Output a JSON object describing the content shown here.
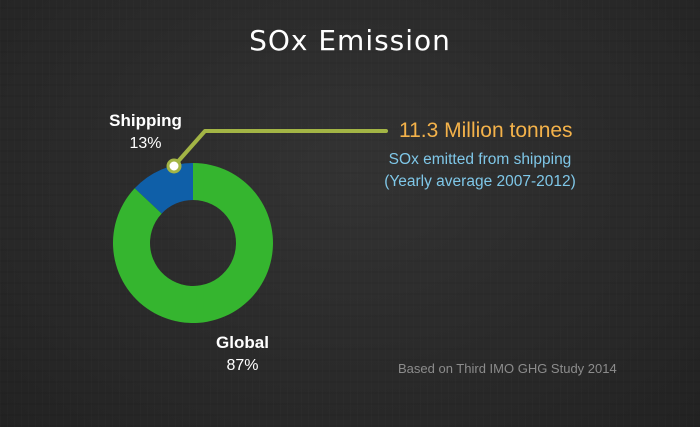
{
  "chart_data": {
    "type": "pie",
    "title": "SOx Emission",
    "categories": [
      "Shipping",
      "Global"
    ],
    "values": [
      13,
      87
    ],
    "value_labels": [
      "13%",
      "87%"
    ],
    "colors": [
      "#0f5fa8",
      "#35b52f"
    ],
    "annotation": {
      "value": "11.3 Million tonnes",
      "line1": "SOx emitted from shipping",
      "line2": "(Yearly average 2007-2012)"
    },
    "source": "Based on Third IMO GHG Study 2014",
    "style": {
      "callout_line_color": "#a3b545",
      "value_color": "#f4b24a",
      "desc_color": "#7fc7e8"
    }
  }
}
